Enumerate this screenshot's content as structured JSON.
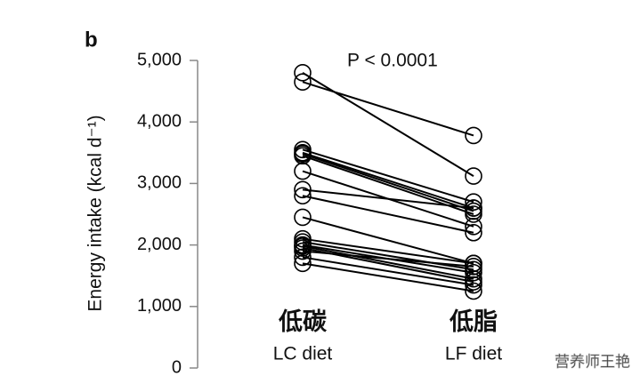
{
  "chart_data": {
    "type": "paired",
    "panel_label": "b",
    "annotation": "P < 0.0001",
    "y_label": "Energy intake (kcal d⁻¹)",
    "categories": [
      "LC diet",
      "LF diet"
    ],
    "category_notes": [
      "低碳",
      "低脂"
    ],
    "category_note_colors": [
      "#e8141e",
      "#1e9be0"
    ],
    "watermark": "营养师王艳",
    "color": "#000000",
    "ylim": [
      0,
      5000
    ],
    "yticks": [
      0,
      {
        "value": 1000,
        "label": "1,000"
      },
      {
        "value": 2000,
        "label": "2,000"
      },
      {
        "value": 3000,
        "label": "3,000"
      },
      {
        "value": 4000,
        "label": "4,000"
      },
      {
        "value": 5000,
        "label": "5,000"
      }
    ],
    "series": [
      {
        "values": [
          4800,
          3120
        ]
      },
      {
        "values": [
          4650,
          3780
        ]
      },
      {
        "values": [
          3550,
          2700
        ]
      },
      {
        "values": [
          3500,
          2600
        ]
      },
      {
        "values": [
          3480,
          2550
        ]
      },
      {
        "values": [
          3450,
          2500
        ]
      },
      {
        "values": [
          3200,
          2300
        ]
      },
      {
        "values": [
          2900,
          2600
        ]
      },
      {
        "values": [
          2800,
          2200
        ]
      },
      {
        "values": [
          2450,
          1700
        ]
      },
      {
        "values": [
          2100,
          1700
        ]
      },
      {
        "values": [
          2050,
          1600
        ]
      },
      {
        "values": [
          2000,
          1550
        ]
      },
      {
        "values": [
          1980,
          1450
        ]
      },
      {
        "values": [
          1950,
          1400
        ]
      },
      {
        "values": [
          1900,
          1650
        ]
      },
      {
        "values": [
          1800,
          1350
        ]
      },
      {
        "values": [
          1700,
          1250
        ]
      }
    ]
  }
}
